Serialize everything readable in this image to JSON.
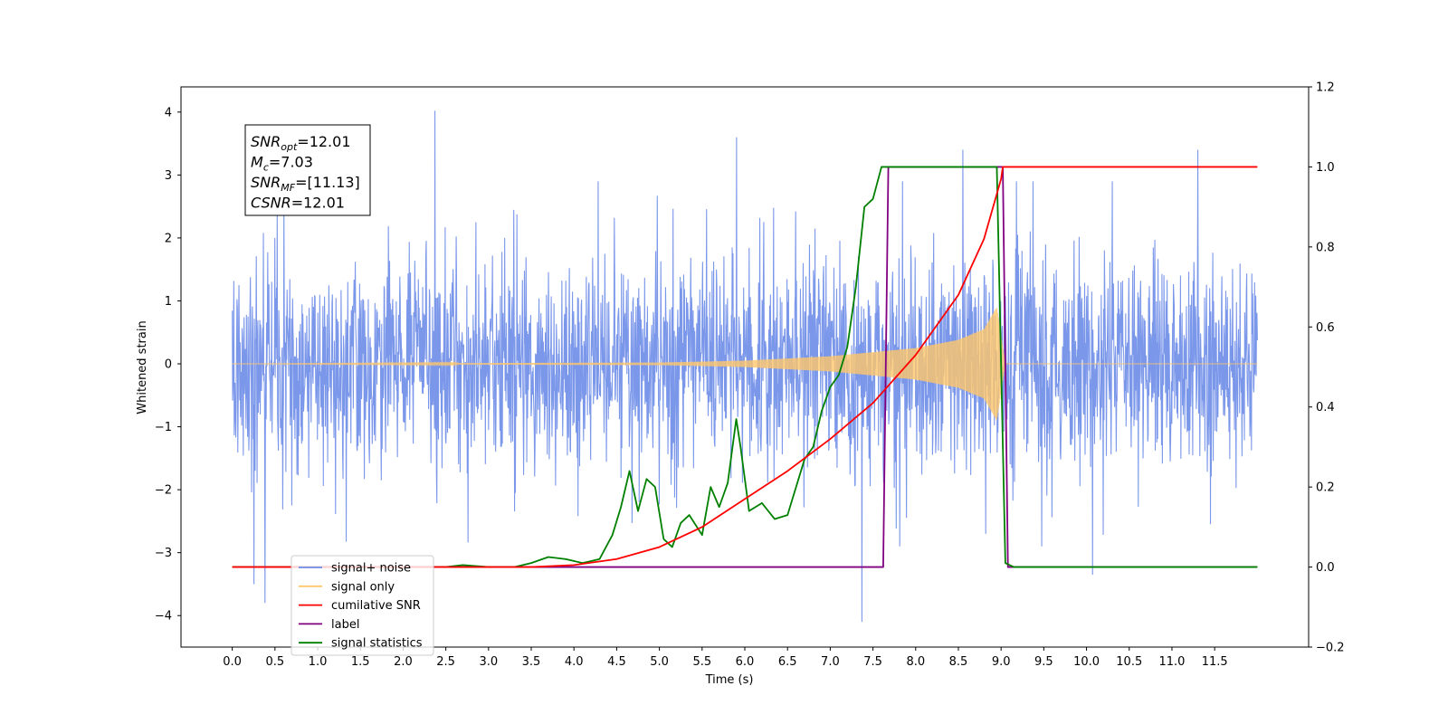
{
  "chart_data": {
    "type": "line",
    "xlabel": "Time (s)",
    "ylabel": "Whitened strain",
    "xlim": [
      -0.6,
      12.6
    ],
    "ylim": [
      -4.5,
      4.4
    ],
    "y2lim": [
      -0.2,
      1.2
    ],
    "x_ticks": [
      "0.0",
      "0.5",
      "1.0",
      "1.5",
      "2.0",
      "2.5",
      "3.0",
      "3.5",
      "4.0",
      "4.5",
      "5.0",
      "5.5",
      "6.0",
      "6.5",
      "7.0",
      "7.5",
      "8.0",
      "8.5",
      "9.0",
      "9.5",
      "10.0",
      "10.5",
      "11.0",
      "11.5"
    ],
    "y_ticks": [
      "4",
      "3",
      "2",
      "1",
      "0",
      "−1",
      "−2",
      "−3",
      "−4"
    ],
    "y2_ticks": [
      "1.2",
      "1.0",
      "0.8",
      "0.6",
      "0.4",
      "0.2",
      "0.0",
      "−0.2"
    ],
    "annotation_box": {
      "lines": [
        {
          "var": "SNR",
          "sub": "opt",
          "value": "=12.01"
        },
        {
          "var": "M",
          "sub": "c",
          "value": "=7.03"
        },
        {
          "var": "SNR",
          "sub": "MF",
          "value": "=[11.13]"
        },
        {
          "var": "CSNR",
          "sub": "",
          "value": "=12.01"
        }
      ]
    },
    "legend": {
      "placement": "lower-left",
      "entries": [
        {
          "label": "signal+ noise",
          "color": "#6d8ce8"
        },
        {
          "label": "signal only",
          "color": "#ffc76b"
        },
        {
          "label": "cumilative SNR",
          "color": "#ff0000"
        },
        {
          "label": "label",
          "color": "#800080"
        },
        {
          "label": "signal statistics",
          "color": "#008000"
        }
      ]
    },
    "series": [
      {
        "name": "signal+ noise",
        "axis": "left",
        "color": "#6d8ce8",
        "x_range": [
          0.0,
          12.0
        ],
        "envelope_typical": 1.5,
        "peaks": [
          [
            2.37,
            4.02
          ],
          [
            7.37,
            -4.1
          ],
          [
            0.38,
            -3.8
          ],
          [
            0.25,
            -3.5
          ],
          [
            5.9,
            3.6
          ],
          [
            11.3,
            3.4
          ],
          [
            10.07,
            -3.35
          ],
          [
            8.55,
            3.4
          ]
        ]
      },
      {
        "name": "signal only",
        "axis": "left",
        "color": "#ffc76b",
        "x_range": [
          0.0,
          12.0
        ],
        "amplitude": [
          [
            0.0,
            0.0
          ],
          [
            5.0,
            0.02
          ],
          [
            6.0,
            0.05
          ],
          [
            7.0,
            0.12
          ],
          [
            8.0,
            0.25
          ],
          [
            8.5,
            0.38
          ],
          [
            8.8,
            0.55
          ],
          [
            8.95,
            0.9
          ],
          [
            9.05,
            0.0
          ],
          [
            12.0,
            0.0
          ]
        ]
      },
      {
        "name": "cumilative SNR",
        "axis": "right",
        "color": "#ff0000",
        "x": [
          0.0,
          3.5,
          4.0,
          4.5,
          5.0,
          5.5,
          6.0,
          6.5,
          7.0,
          7.5,
          8.0,
          8.5,
          8.8,
          9.0,
          9.02,
          12.0
        ],
        "values": [
          0.0,
          0.0,
          0.005,
          0.02,
          0.05,
          0.1,
          0.17,
          0.24,
          0.32,
          0.41,
          0.53,
          0.68,
          0.82,
          0.97,
          1.0,
          1.0
        ]
      },
      {
        "name": "label",
        "axis": "right",
        "color": "#800080",
        "x": [
          0.0,
          7.62,
          7.68,
          9.02,
          9.08,
          12.0
        ],
        "values": [
          0.0,
          0.0,
          1.0,
          1.0,
          0.0,
          0.0
        ]
      },
      {
        "name": "signal statistics",
        "axis": "right",
        "color": "#008000",
        "x": [
          0.0,
          2.5,
          2.7,
          3.0,
          3.3,
          3.5,
          3.7,
          3.9,
          4.1,
          4.2,
          4.3,
          4.45,
          4.55,
          4.65,
          4.75,
          4.85,
          4.95,
          5.05,
          5.15,
          5.25,
          5.35,
          5.5,
          5.6,
          5.7,
          5.8,
          5.9,
          5.95,
          6.05,
          6.2,
          6.35,
          6.5,
          6.7,
          6.8,
          6.9,
          7.0,
          7.1,
          7.2,
          7.3,
          7.4,
          7.5,
          7.6,
          7.7,
          8.2,
          8.5,
          8.95,
          9.05,
          9.15,
          12.0
        ],
        "values": [
          0.0,
          0.0,
          0.005,
          0.0,
          0.0,
          0.01,
          0.025,
          0.02,
          0.01,
          0.015,
          0.02,
          0.08,
          0.15,
          0.24,
          0.14,
          0.22,
          0.2,
          0.07,
          0.05,
          0.11,
          0.13,
          0.08,
          0.2,
          0.15,
          0.21,
          0.37,
          0.3,
          0.14,
          0.16,
          0.12,
          0.13,
          0.27,
          0.3,
          0.39,
          0.45,
          0.48,
          0.55,
          0.7,
          0.9,
          0.92,
          1.0,
          1.0,
          1.0,
          1.0,
          1.0,
          0.01,
          0.0,
          0.0
        ]
      }
    ]
  }
}
